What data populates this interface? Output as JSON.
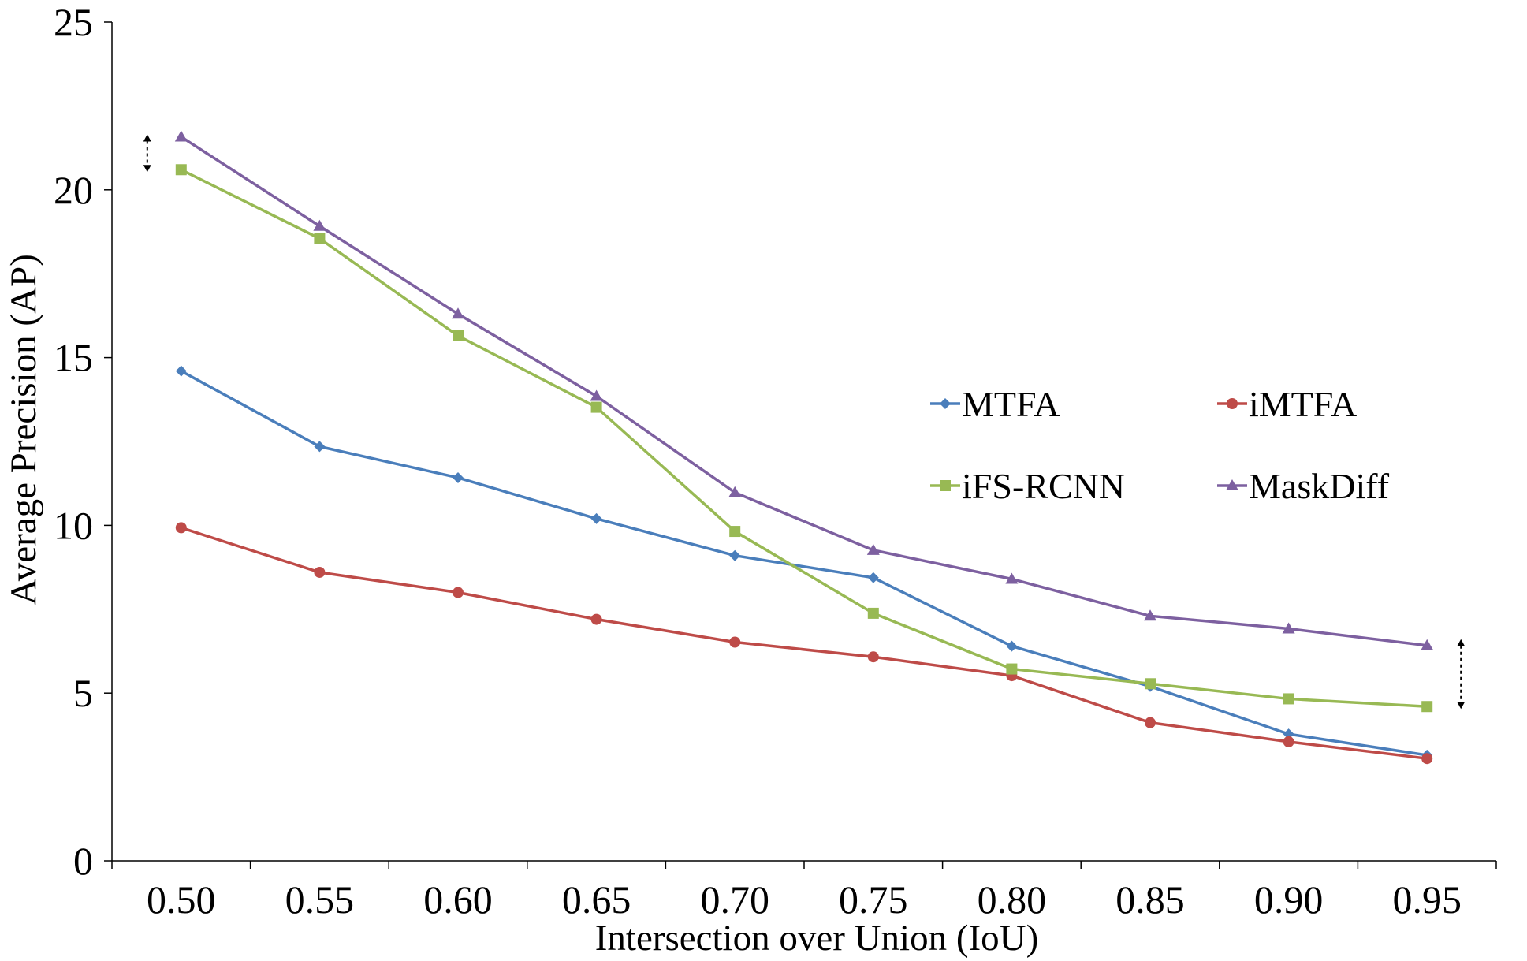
{
  "chart_data": {
    "type": "line",
    "title": "",
    "xlabel": "Intersection over Union (IoU)",
    "ylabel": "Average Precision (AP)",
    "categories": [
      "0.50",
      "0.55",
      "0.60",
      "0.65",
      "0.70",
      "0.75",
      "0.80",
      "0.85",
      "0.90",
      "0.95"
    ],
    "y_ticks": [
      "0",
      "5",
      "10",
      "15",
      "20",
      "25"
    ],
    "ylim": [
      0,
      25
    ],
    "grid": false,
    "legend_position": "right",
    "series": [
      {
        "name": "MTFA",
        "color": "#4a7ebb",
        "marker": "diamond",
        "values": [
          14.6,
          12.35,
          11.42,
          10.2,
          9.1,
          8.44,
          6.4,
          5.2,
          3.78,
          3.15
        ]
      },
      {
        "name": "iMTFA",
        "color": "#be4b48",
        "marker": "circle",
        "values": [
          9.93,
          8.6,
          8.0,
          7.2,
          6.52,
          6.08,
          5.52,
          4.12,
          3.55,
          3.05
        ]
      },
      {
        "name": "iFS-RCNN",
        "color": "#98b954",
        "marker": "square",
        "values": [
          20.6,
          18.55,
          15.65,
          13.52,
          9.82,
          7.38,
          5.72,
          5.28,
          4.83,
          4.6
        ]
      },
      {
        "name": "MaskDiff",
        "color": "#7d60a0",
        "marker": "triangle",
        "values": [
          21.58,
          18.92,
          16.3,
          13.85,
          10.98,
          9.26,
          8.4,
          7.3,
          6.92,
          6.42
        ]
      }
    ]
  }
}
